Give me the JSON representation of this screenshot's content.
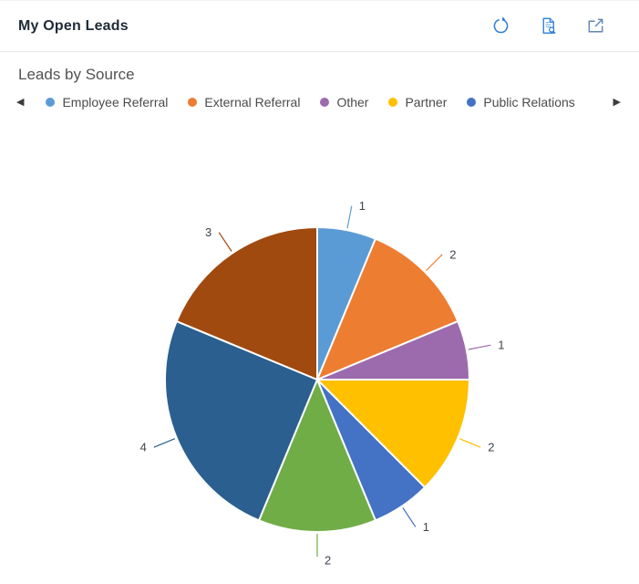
{
  "header": {
    "title": "My Open Leads",
    "actions": [
      {
        "icon": "refresh-icon",
        "color": "#2E7CD6"
      },
      {
        "icon": "view-report-icon",
        "color": "#2E7CD6"
      },
      {
        "icon": "open-in-new-window-icon",
        "color": "#6286B4"
      }
    ]
  },
  "chart": {
    "title": "Leads by Source",
    "legend": {
      "prev_glyph": "◀",
      "next_glyph": "▶",
      "items": [
        {
          "label": "Employee Referral",
          "color": "#5B9BD5"
        },
        {
          "label": "External Referral",
          "color": "#ED7D31"
        },
        {
          "label": "Other",
          "color": "#9C6BAD"
        },
        {
          "label": "Partner",
          "color": "#FFC000"
        },
        {
          "label": "Public Relations",
          "color": "#4472C4"
        }
      ]
    }
  },
  "chart_data": {
    "type": "pie",
    "title": "Leads by Source",
    "categories": [
      "Employee Referral",
      "External Referral",
      "Other",
      "Partner",
      "Public Relations",
      "",
      "",
      ""
    ],
    "values": [
      1,
      2,
      1,
      2,
      1,
      2,
      4,
      3
    ],
    "colors": [
      "#5B9BD5",
      "#ED7D31",
      "#9C6BAD",
      "#FFC000",
      "#4472C4",
      "#70AD47",
      "#2A5F8F",
      "#A04A10"
    ],
    "total": 16,
    "start_angle_deg": 0,
    "direction": "clockwise",
    "data_labels": "value",
    "legend_position": "top",
    "legend_scrollable": true,
    "legend_visible_count": 5
  }
}
